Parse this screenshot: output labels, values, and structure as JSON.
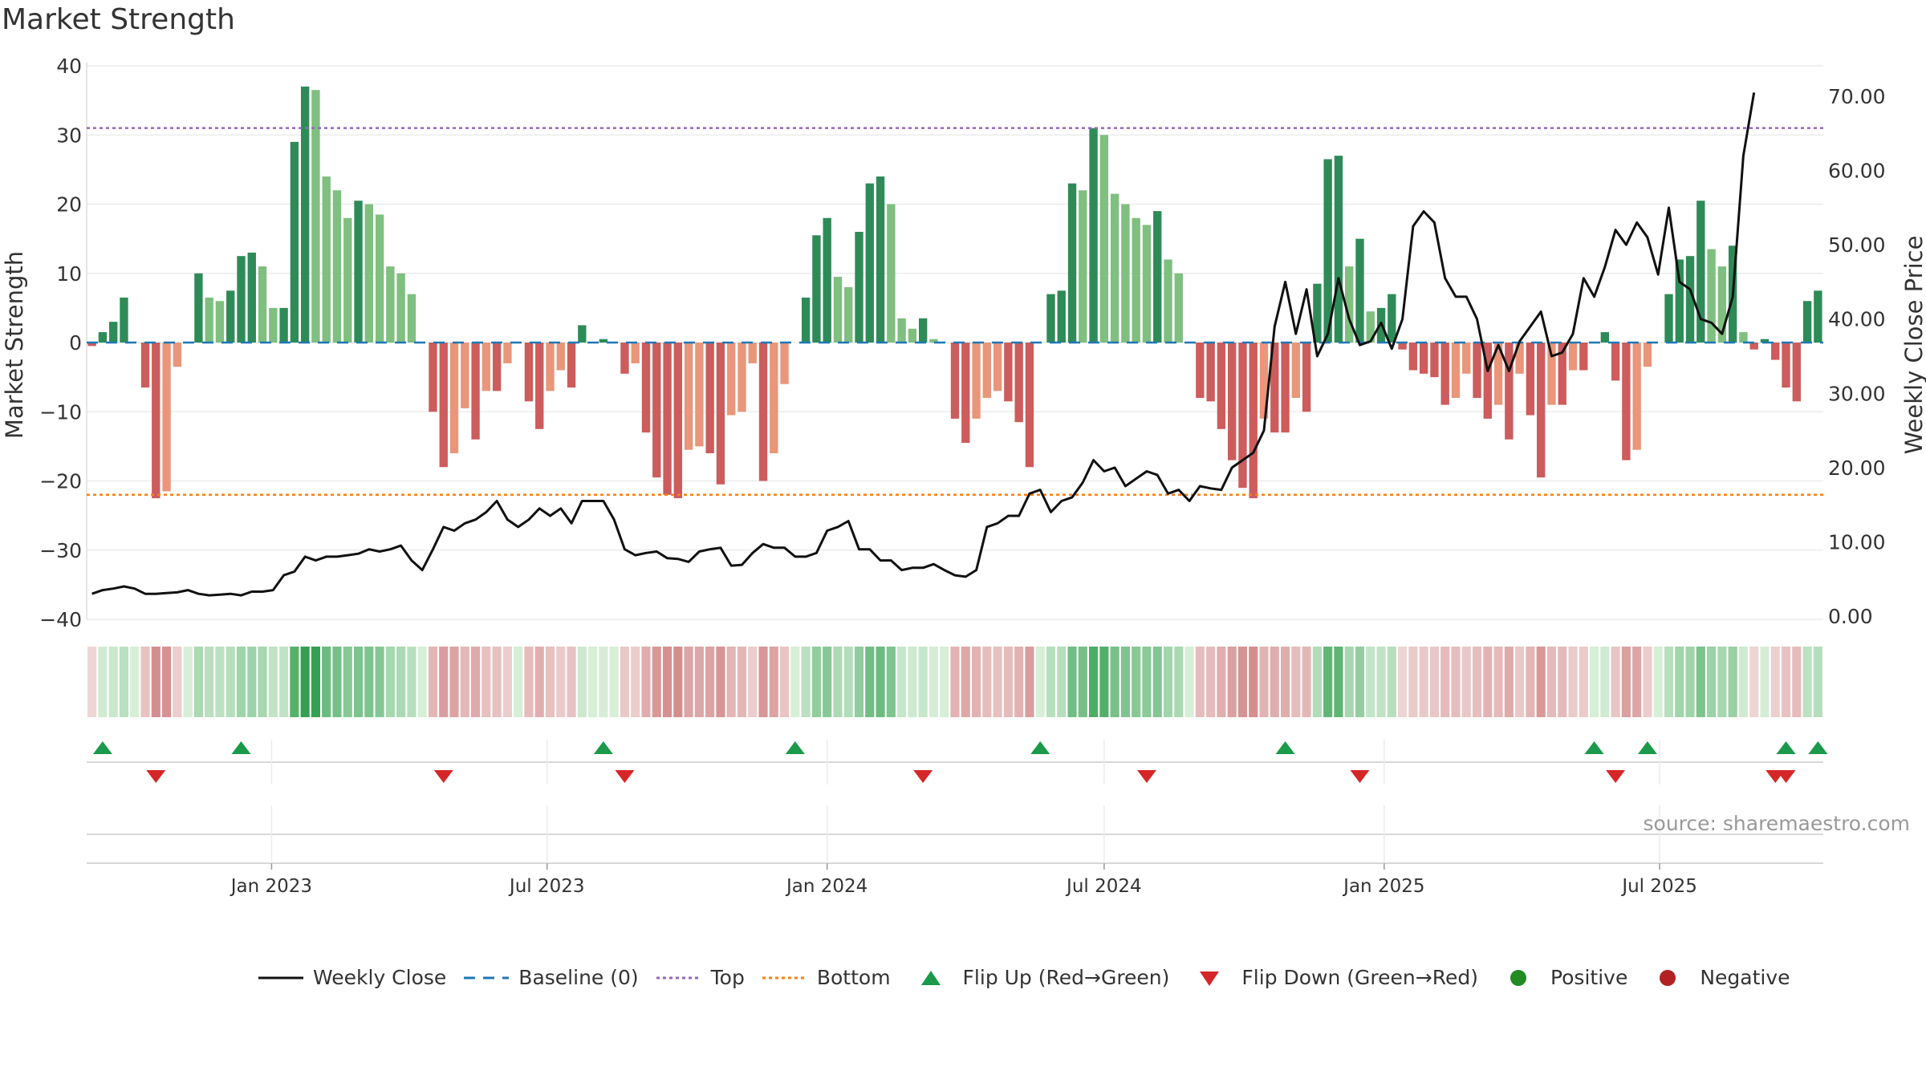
{
  "title": "Market Strength",
  "source": "source: sharemaestro.com",
  "legend": {
    "weekly_close": "Weekly Close",
    "baseline": "Baseline (0)",
    "top": "Top",
    "bottom": "Bottom",
    "flip_up": "Flip Up (Red→Green)",
    "flip_down": "Flip Down (Green→Red)",
    "positive": "Positive",
    "negative": "Negative"
  },
  "colors": {
    "pos_dark": "#2e8b57",
    "pos_light": "#7fbf7f",
    "neg_dark": "#cd5c5c",
    "neg_light": "#e9967a",
    "line": "#111111",
    "baseline": "#1f77b4",
    "top": "#9467bd",
    "bottom": "#ff7f0e",
    "flip_up": "#1a9a4a",
    "flip_down": "#d62728",
    "positive": "#228b22",
    "negative": "#b22222"
  },
  "chart_data": {
    "type": "bar",
    "ylabel": "Market Strength",
    "y2label": "Weekly Close Price",
    "ylim": [
      -40,
      40
    ],
    "y_ticks": [
      "40",
      "30",
      "20",
      "10",
      "0",
      "−10",
      "−20",
      "−30",
      "−40"
    ],
    "y2lim": [
      0,
      70
    ],
    "y2_ticks": [
      "70.00",
      "60.00",
      "50.00",
      "40.00",
      "30.00",
      "20.00",
      "10.00",
      "0.00"
    ],
    "top_level": 31,
    "bottom_level": -22,
    "x_ticks": [
      "Jan 2023",
      "Jul 2023",
      "Jan 2024",
      "Jul 2024",
      "Jan 2025",
      "Jul 2025"
    ],
    "x_start": "2022-09-05",
    "strength": [
      -0.5,
      1.5,
      3,
      6.5,
      0,
      -6.5,
      -22.5,
      -21.5,
      -3.5,
      0,
      10,
      6.5,
      6,
      7.5,
      12.5,
      13,
      11,
      5,
      5,
      29,
      37,
      36.5,
      24,
      22,
      18,
      20.5,
      20,
      18.5,
      11,
      10,
      7,
      0,
      -10,
      -18,
      -16,
      -9.5,
      -14,
      -7,
      -7,
      -3,
      0,
      -8.5,
      -12.5,
      -7,
      -4,
      -6.5,
      2.5,
      0,
      0.5,
      0,
      -4.5,
      -3,
      -13,
      -19.5,
      -22,
      -22.5,
      -15.5,
      -15,
      -16,
      -20.5,
      -10.5,
      -10,
      -3,
      -20,
      -16,
      -6,
      0,
      6.5,
      15.5,
      18,
      9.5,
      8,
      16,
      23,
      24,
      20,
      3.5,
      2,
      3.5,
      0.5,
      0,
      -11,
      -14.5,
      -11,
      -8,
      -7,
      -8.5,
      -11.5,
      -18,
      0,
      7,
      7.5,
      23,
      22,
      31,
      30,
      21.5,
      20,
      18,
      17,
      19,
      12,
      10,
      0,
      -8,
      -8.5,
      -12.5,
      -17,
      -21,
      -22.5,
      -11,
      -13,
      -13,
      -8,
      -10,
      8.5,
      26.5,
      27,
      11,
      15,
      4.5,
      5,
      7,
      -1,
      -4,
      -4.5,
      -5,
      -9,
      -8,
      -4.5,
      -8,
      -11,
      -9,
      -14,
      -4.5,
      -10.5,
      -19.5,
      -9,
      -9,
      -4,
      -4,
      0,
      1.5,
      -5.5,
      -17,
      -15.5,
      -3.5,
      0,
      7,
      12,
      12.5,
      20.5,
      13.5,
      11,
      14,
      1.5,
      -1,
      0.5,
      -2.5,
      -6.5,
      -8.5,
      6,
      7.5
    ],
    "weekly_close": [
      3,
      3.5,
      3.7,
      4,
      3.7,
      3,
      3,
      3.1,
      3.2,
      3.5,
      3,
      2.8,
      2.9,
      3,
      2.8,
      3.3,
      3.3,
      3.5,
      5.5,
      6,
      8,
      7.5,
      8,
      8,
      8.2,
      8.4,
      9,
      8.7,
      9,
      9.5,
      7.5,
      6.2,
      9,
      12,
      11.5,
      12.5,
      13,
      14,
      15.5,
      13,
      12,
      13,
      14.5,
      13.5,
      14.5,
      12.5,
      15.5,
      15.5,
      15.5,
      13,
      9,
      8.2,
      8.5,
      8.7,
      7.8,
      7.7,
      7.3,
      8.7,
      9,
      9.2,
      6.8,
      6.9,
      8.5,
      9.7,
      9.2,
      9.2,
      8,
      8,
      8.5,
      11.5,
      12,
      12.8,
      9,
      9,
      7.5,
      7.5,
      6.2,
      6.5,
      6.5,
      7,
      6.2,
      5.5,
      5.3,
      6.2,
      12,
      12.5,
      13.5,
      13.5,
      16.5,
      17,
      14,
      15.5,
      16,
      18,
      21,
      19.5,
      20,
      17.5,
      18.5,
      19.5,
      19,
      16.5,
      17,
      15.5,
      17.5,
      17.2,
      17,
      20,
      21,
      22,
      25,
      39,
      45,
      38,
      44,
      35,
      38,
      45.5,
      40,
      36.5,
      37,
      39.5,
      36,
      40,
      52.5,
      54.5,
      53,
      45.5,
      43,
      43,
      40,
      33,
      36.5,
      33,
      37,
      39,
      41,
      35,
      35.5,
      38,
      45.5,
      43,
      47,
      52,
      50,
      53,
      51,
      46,
      55,
      45,
      44,
      40,
      39.5,
      38,
      43,
      62,
      70.5
    ],
    "flips_up": [
      "2022-09-12",
      "2022-12-12",
      "2023-08-07",
      "2023-12-11",
      "2024-05-20",
      "2024-10-28",
      "2025-05-19",
      "2025-06-23",
      "2025-09-22",
      "2025-10-13"
    ],
    "flips_down": [
      "2022-10-17",
      "2023-04-24",
      "2023-08-21",
      "2024-03-04",
      "2024-07-29",
      "2024-12-16",
      "2025-06-02",
      "2025-09-15",
      "2025-09-22"
    ]
  }
}
